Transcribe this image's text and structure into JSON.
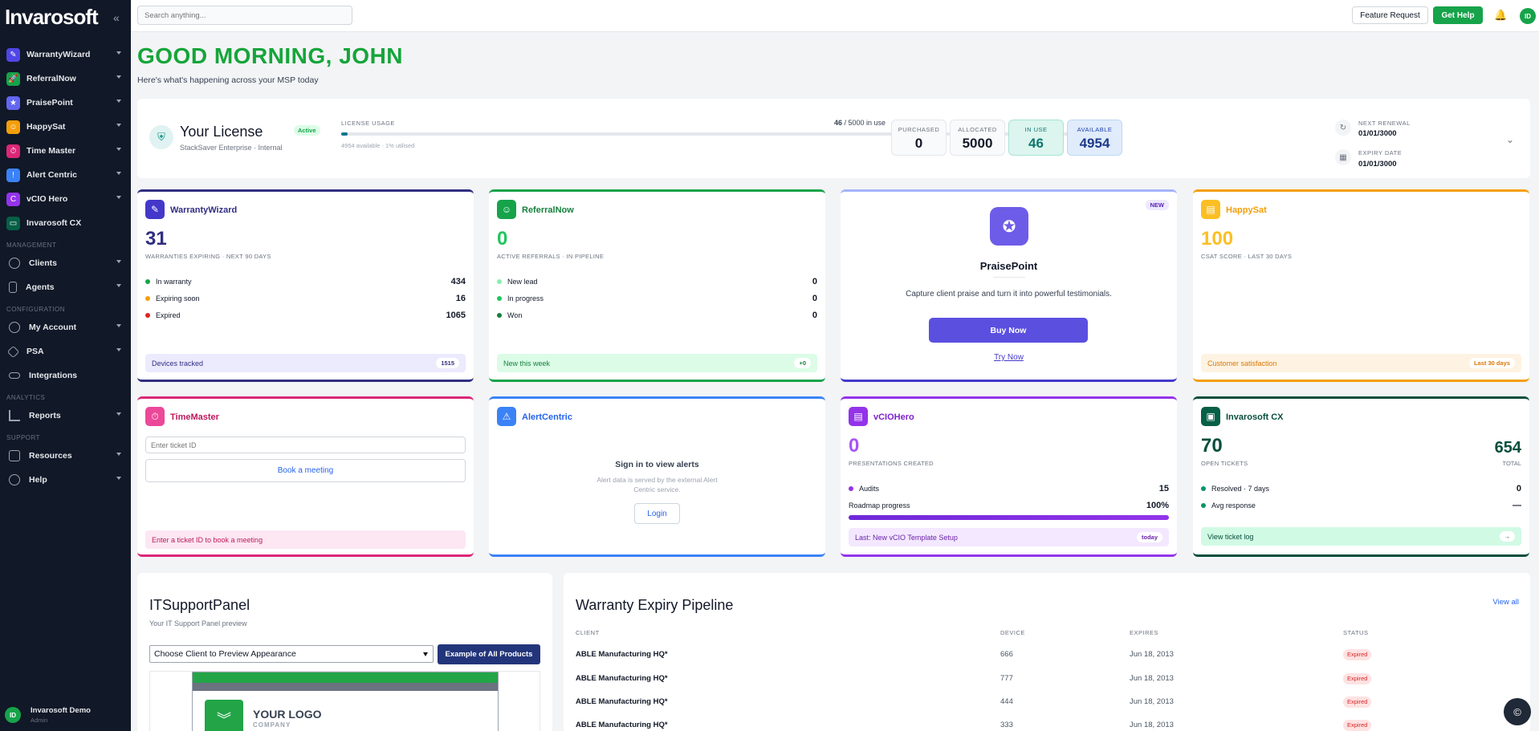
{
  "sidebar": {
    "logo": "Invarosoft",
    "collapse": "«",
    "apps": [
      {
        "label": "WarrantyWizard",
        "glyph": "✎",
        "color": "#4f46e5"
      },
      {
        "label": "ReferralNow",
        "glyph": "🚀",
        "color": "#16a34a"
      },
      {
        "label": "PraisePoint",
        "glyph": "★",
        "color": "#6366f1"
      },
      {
        "label": "HappySat",
        "glyph": "☺",
        "color": "#f59e0b"
      },
      {
        "label": "Time Master",
        "glyph": "⏱",
        "color": "#db2777"
      },
      {
        "label": "Alert Centric",
        "glyph": "!",
        "color": "#3b82f6"
      },
      {
        "label": "vCIO Hero",
        "glyph": "C",
        "color": "#9333ea"
      },
      {
        "label": "Invarosoft CX",
        "glyph": "▭",
        "color": "#065f46"
      }
    ],
    "sections": {
      "management": "MANAGEMENT",
      "configuration": "CONFIGURATION",
      "analytics": "ANALYTICS",
      "support": "SUPPORT"
    },
    "management": [
      {
        "label": "Clients"
      },
      {
        "label": "Agents"
      }
    ],
    "configuration": [
      {
        "label": "My Account"
      },
      {
        "label": "PSA"
      },
      {
        "label": "Integrations"
      }
    ],
    "analytics": [
      {
        "label": "Reports"
      }
    ],
    "support": [
      {
        "label": "Resources"
      },
      {
        "label": "Help"
      }
    ],
    "user": {
      "initials": "ID",
      "name": "Invarosoft Demo",
      "role": "Admin"
    }
  },
  "topbar": {
    "search_placeholder": "Search anything...",
    "feature_request": "Feature Request",
    "get_help": "Get Help",
    "avatar": "ID"
  },
  "greeting": {
    "title": "GOOD MORNING, JOHN",
    "subtitle": "Here's what's happening across your MSP today"
  },
  "license": {
    "title": "Your License",
    "subtitle": "StackSaver Enterprise · Internal",
    "status": "Active",
    "usage_label": "LICENSE USAGE",
    "usage_in_use": "46",
    "usage_rest": " / 5000 in use",
    "usage_fraction": 0.0092,
    "usage_note": "4954 available · 1% utilised",
    "stats": [
      {
        "key": "PURCHASED",
        "value": "0"
      },
      {
        "key": "ALLOCATED",
        "value": "5000"
      },
      {
        "key": "IN USE",
        "value": "46"
      },
      {
        "key": "AVAILABLE",
        "value": "4954"
      }
    ],
    "next_renewal_label": "NEXT RENEWAL",
    "next_renewal": "01/01/3000",
    "expiry_label": "EXPIRY DATE",
    "expiry": "01/01/3000"
  },
  "cards": {
    "warranty": {
      "title": "WarrantyWizard",
      "big": "31",
      "caption": "WARRANTIES EXPIRING · NEXT 90 DAYS",
      "rows": [
        {
          "label": "In warranty",
          "value": "434",
          "color": "#16a34a"
        },
        {
          "label": "Expiring soon",
          "value": "16",
          "color": "#f59e0b"
        },
        {
          "label": "Expired",
          "value": "1065",
          "color": "#dc2626"
        }
      ],
      "footer": "Devices tracked",
      "footer_value": "1515"
    },
    "referral": {
      "title": "ReferralNow",
      "big": "0",
      "caption": "ACTIVE REFERRALS · IN PIPELINE",
      "rows": [
        {
          "label": "New lead",
          "value": "0",
          "color": "#86efac"
        },
        {
          "label": "In progress",
          "value": "0",
          "color": "#22c55e"
        },
        {
          "label": "Won",
          "value": "0",
          "color": "#15803d"
        }
      ],
      "footer": "New this week",
      "footer_value": "+0"
    },
    "praise": {
      "badge": "NEW",
      "title": "PraisePoint",
      "desc": "Capture client praise and turn it into powerful testimonials.",
      "buy": "Buy Now",
      "try": "Try Now"
    },
    "happysat": {
      "title": "HappySat",
      "big": "100",
      "caption": "CSAT SCORE · LAST 30 DAYS",
      "footer": "Customer satisfaction",
      "footer_value": "Last 30 days"
    },
    "timemaster": {
      "title": "TimeMaster",
      "placeholder": "Enter ticket ID",
      "book": "Book a meeting",
      "footer": "Enter a ticket ID to book a meeting"
    },
    "alertcentric": {
      "title": "AlertCentric",
      "heading": "Sign in to view alerts",
      "text": "Alert data is served by the external Alert Centric service.",
      "login": "Login"
    },
    "vcio": {
      "title": "vCIOHero",
      "big": "0",
      "caption": "PRESENTATIONS CREATED",
      "audits_label": "Audits",
      "audits_value": "15",
      "roadmap_label": "Roadmap progress",
      "roadmap_value": "100%",
      "roadmap_fraction": 1.0,
      "footer": "Last: New vCIO Template Setup",
      "footer_value": "today"
    },
    "cx": {
      "title": "Invarosoft CX",
      "big": "70",
      "caption": "OPEN TICKETS",
      "total": "654",
      "total_label": "TOTAL",
      "rows": [
        {
          "label": "Resolved · 7 days",
          "value": "0",
          "color": "#059669"
        },
        {
          "label": "Avg response",
          "value": "—",
          "color": "#059669"
        }
      ],
      "footer": "View ticket log",
      "footer_value": "→"
    }
  },
  "itsupport": {
    "title": "ITSupportPanel",
    "subtitle": "Your IT Support Panel preview",
    "select": "Choose Client to Preview Appearance",
    "example_button": "Example of All Products",
    "preview_logo": "YOUR LOGO",
    "preview_company": "COMPANY"
  },
  "pipeline": {
    "title": "Warranty Expiry Pipeline",
    "view_all": "View all",
    "columns": [
      "CLIENT",
      "DEVICE",
      "EXPIRES",
      "STATUS"
    ],
    "rows": [
      {
        "client": "ABLE Manufacturing HQ*",
        "device": "666",
        "expires": "Jun 18, 2013",
        "status": "Expired"
      },
      {
        "client": "ABLE Manufacturing HQ*",
        "device": "777",
        "expires": "Jun 18, 2013",
        "status": "Expired"
      },
      {
        "client": "ABLE Manufacturing HQ*",
        "device": "444",
        "expires": "Jun 18, 2013",
        "status": "Expired"
      },
      {
        "client": "ABLE Manufacturing HQ*",
        "device": "333",
        "expires": "Jun 18, 2013",
        "status": "Expired"
      }
    ]
  },
  "fab": "©"
}
